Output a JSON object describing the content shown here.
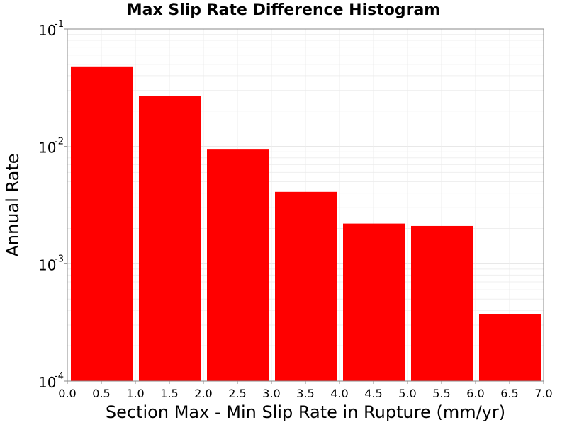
{
  "chart_data": {
    "type": "bar",
    "title": "Max Slip Rate Difference Histogram",
    "xlabel": "Section Max - Min Slip Rate in Rupture (mm/yr)",
    "ylabel": "Annual Rate",
    "xlim": [
      0.0,
      7.0
    ],
    "ylim": [
      0.0001,
      0.1
    ],
    "yscale": "log",
    "grid": true,
    "bar_color": "#ff0000",
    "bin_width": 1.0,
    "x_ticks": [
      "0.0",
      "0.5",
      "1.0",
      "1.5",
      "2.0",
      "2.5",
      "3.0",
      "3.5",
      "4.0",
      "4.5",
      "5.0",
      "5.5",
      "6.0",
      "6.5",
      "7.0"
    ],
    "y_ticks": [
      {
        "base": "10",
        "exp": "-4",
        "value": 0.0001
      },
      {
        "base": "10",
        "exp": "-3",
        "value": 0.001
      },
      {
        "base": "10",
        "exp": "-2",
        "value": 0.01
      },
      {
        "base": "10",
        "exp": "-1",
        "value": 0.1
      }
    ],
    "bins": [
      {
        "x": 0.5,
        "value": 0.048
      },
      {
        "x": 1.5,
        "value": 0.027
      },
      {
        "x": 2.5,
        "value": 0.0094
      },
      {
        "x": 3.5,
        "value": 0.0041
      },
      {
        "x": 4.5,
        "value": 0.0022
      },
      {
        "x": 5.5,
        "value": 0.0021
      },
      {
        "x": 6.5,
        "value": 0.00037
      }
    ]
  }
}
